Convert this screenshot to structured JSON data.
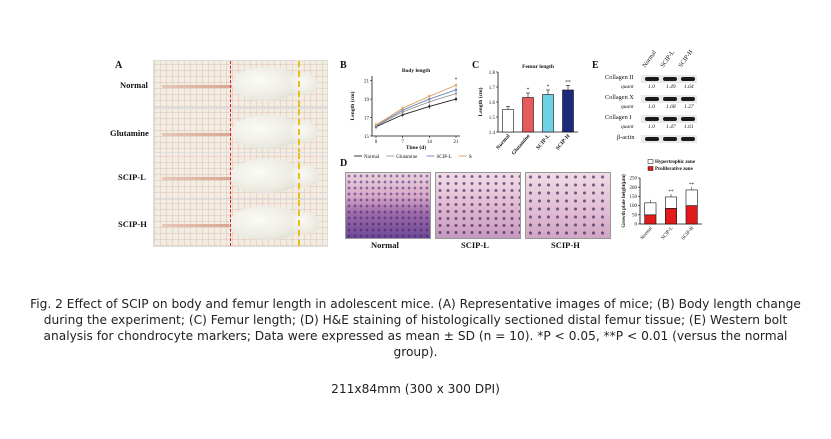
{
  "panels": {
    "a": "A",
    "b": "B",
    "c": "C",
    "d": "D",
    "e": "E"
  },
  "mice": {
    "rows": [
      {
        "label": "Normal"
      },
      {
        "label": "Glutamine"
      },
      {
        "label": "SCIP-L"
      },
      {
        "label": "SCIP-H"
      }
    ]
  },
  "chart_data": [
    {
      "type": "line",
      "panel": "B",
      "title": "Body length",
      "xlabel": "Time (d)",
      "ylabel": "Length (cm)",
      "xticks": [
        "0",
        "7",
        "14",
        "21"
      ],
      "yticks": [
        "15",
        "17",
        "19",
        "21"
      ],
      "x": [
        0,
        7,
        14,
        21
      ],
      "ylim": [
        15,
        21.5
      ],
      "series": [
        {
          "name": "Normal",
          "values": [
            16.0,
            17.3,
            18.2,
            19.0
          ],
          "color": "#222222"
        },
        {
          "name": "Glutamine",
          "values": [
            16.1,
            17.6,
            18.7,
            19.6
          ],
          "color": "#999999"
        },
        {
          "name": "SCIP-L",
          "values": [
            16.1,
            17.8,
            19.0,
            20.0
          ],
          "color": "#6b86b5"
        },
        {
          "name": "SCIP-H",
          "values": [
            16.2,
            18.0,
            19.3,
            20.5
          ],
          "color": "#d9a066"
        }
      ],
      "annotations": [
        "*"
      ]
    },
    {
      "type": "bar",
      "panel": "C",
      "title": "Femur length",
      "ylabel": "Length (cm)",
      "ylim": [
        1.4,
        1.8
      ],
      "yticks": [
        "1.4",
        "1.5",
        "1.6",
        "1.7",
        "1.8"
      ],
      "categories": [
        "Normal",
        "Glutamine",
        "SCIP-L",
        "SCIP-H"
      ],
      "values": [
        1.55,
        1.63,
        1.65,
        1.68
      ],
      "errors": [
        0.02,
        0.03,
        0.03,
        0.03
      ],
      "colors": [
        "#ffffff",
        "#e8595a",
        "#6fd2e6",
        "#1b2a7a"
      ],
      "significance": [
        "",
        "*",
        "*",
        "**"
      ]
    },
    {
      "type": "bar",
      "panel": "D-chart",
      "ylabel": "Growth plate height(μm)",
      "ylim": [
        0,
        250
      ],
      "yticks": [
        "0",
        "50",
        "100",
        "150",
        "200",
        "250"
      ],
      "categories": [
        "Normal",
        "SCIP-L",
        "SCIP-H"
      ],
      "legend": [
        "Hypertrophic zone",
        "Proliferative zone"
      ],
      "series": [
        {
          "name": "Proliferative zone",
          "values": [
            50,
            85,
            100
          ],
          "color": "#e11b1b"
        },
        {
          "name": "Hypertrophic zone",
          "values": [
            65,
            62,
            85
          ],
          "color": "#ffffff"
        }
      ],
      "significance": [
        "",
        "**",
        "**"
      ]
    }
  ],
  "histology": {
    "labels": [
      "Normal",
      "SCIP-L",
      "SCIP-H"
    ]
  },
  "western": {
    "lanes": [
      "Normal",
      "SCIP-L",
      "SCIP-H"
    ],
    "rows": [
      {
        "protein": "Collagen II",
        "quant_label": "quant",
        "quant": [
          "1.0",
          "1.49",
          "1.64"
        ]
      },
      {
        "protein": "Collagen X",
        "quant_label": "quant",
        "quant": [
          "1.0",
          "1.68",
          "1.27"
        ]
      },
      {
        "protein": "Collagen I",
        "quant_label": "quant",
        "quant": [
          "1.0",
          "1.47",
          "1.61"
        ]
      },
      {
        "protein": "β-actin"
      }
    ]
  },
  "caption": "Fig. 2 Effect of SCIP on body and femur length in adolescent mice. (A) Representative images of mice; (B) Body length change during the experiment; (C) Femur length; (D) H&E staining of histologically sectioned distal femur tissue; (E) Western bolt analysis for chondrocyte markers; Data were expressed as mean ± SD (n = 10). *P < 0.05, **P < 0.01 (versus the normal group).",
  "size_note": "211x84mm (300 x 300 DPI)"
}
